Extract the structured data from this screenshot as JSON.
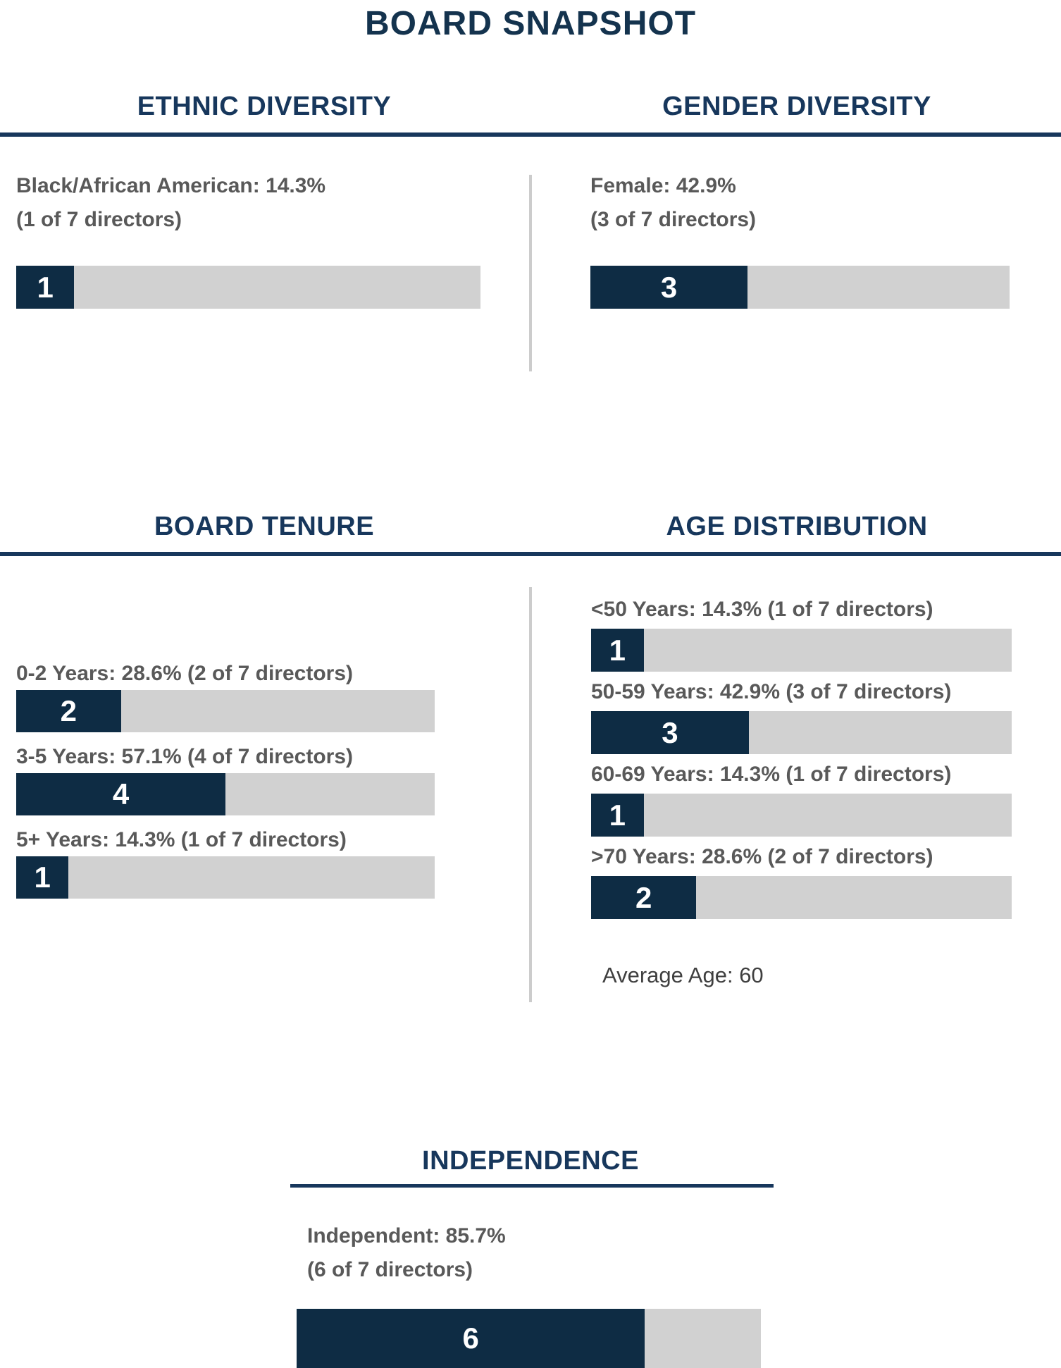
{
  "page_title": "BOARD SNAPSHOT",
  "colors": {
    "navy_fill": "#0e2c44",
    "heading_navy": "#17375c",
    "bar_track_gray": "#d1d1d1",
    "label_gray": "#595959",
    "divider_gray": "#cccccc"
  },
  "sections": {
    "ethnic": {
      "heading": "ETHNIC DIVERSITY",
      "line1": "Black/African American: 14.3%",
      "line2": "(1 of 7 directors)",
      "bar": {
        "value": 1,
        "total": 7
      }
    },
    "gender": {
      "heading": "GENDER DIVERSITY",
      "line1": "Female: 42.9%",
      "line2": "(3 of 7 directors)",
      "bar": {
        "value": 3,
        "total": 7
      }
    },
    "tenure": {
      "heading": "BOARD TENURE",
      "items": [
        {
          "label": "0-2 Years: 28.6% (2 of 7 directors)",
          "bar": {
            "value": 2,
            "total": 7
          }
        },
        {
          "label": "3-5 Years: 57.1% (4 of 7 directors)",
          "bar": {
            "value": 4,
            "total": 7
          }
        },
        {
          "label": "5+ Years: 14.3% (1 of 7 directors)",
          "bar": {
            "value": 1,
            "total": 7
          }
        }
      ]
    },
    "age": {
      "heading": "AGE DISTRIBUTION",
      "items": [
        {
          "label": "<50 Years: 14.3% (1 of 7 directors)",
          "bar": {
            "value": 1,
            "total": 7
          }
        },
        {
          "label": "50-59 Years: 42.9% (3 of 7 directors)",
          "bar": {
            "value": 3,
            "total": 7
          }
        },
        {
          "label": "60-69 Years: 14.3% (1 of 7 directors)",
          "bar": {
            "value": 1,
            "total": 7
          }
        },
        {
          "label": ">70 Years: 28.6% (2 of 7 directors)",
          "bar": {
            "value": 2,
            "total": 7
          }
        }
      ],
      "average_note": "Average Age: 60"
    },
    "independence": {
      "heading": "INDEPENDENCE",
      "line1": "Independent: 85.7%",
      "line2": "(6 of 7 directors)",
      "bar": {
        "value": 6,
        "total": 7
      }
    }
  },
  "chart_data": {
    "type": "bar",
    "title": "BOARD SNAPSHOT",
    "unit": "directors",
    "total_directors": 7,
    "bar_axis_max": 8,
    "grid": false,
    "legend": false,
    "series": [
      {
        "group": "ETHNIC DIVERSITY",
        "category": "Black/African American",
        "value": 1,
        "pct": 14.3
      },
      {
        "group": "GENDER DIVERSITY",
        "category": "Female",
        "value": 3,
        "pct": 42.9
      },
      {
        "group": "BOARD TENURE",
        "category": "0-2 Years",
        "value": 2,
        "pct": 28.6
      },
      {
        "group": "BOARD TENURE",
        "category": "3-5 Years",
        "value": 4,
        "pct": 57.1
      },
      {
        "group": "BOARD TENURE",
        "category": "5+ Years",
        "value": 1,
        "pct": 14.3
      },
      {
        "group": "AGE DISTRIBUTION",
        "category": "<50 Years",
        "value": 1,
        "pct": 14.3
      },
      {
        "group": "AGE DISTRIBUTION",
        "category": "50-59 Years",
        "value": 3,
        "pct": 42.9
      },
      {
        "group": "AGE DISTRIBUTION",
        "category": "60-69 Years",
        "value": 1,
        "pct": 14.3
      },
      {
        "group": "AGE DISTRIBUTION",
        "category": ">70 Years",
        "value": 2,
        "pct": 28.6
      },
      {
        "group": "INDEPENDENCE",
        "category": "Independent",
        "value": 6,
        "pct": 85.7
      }
    ],
    "annotations": [
      "Average Age: 60"
    ]
  }
}
